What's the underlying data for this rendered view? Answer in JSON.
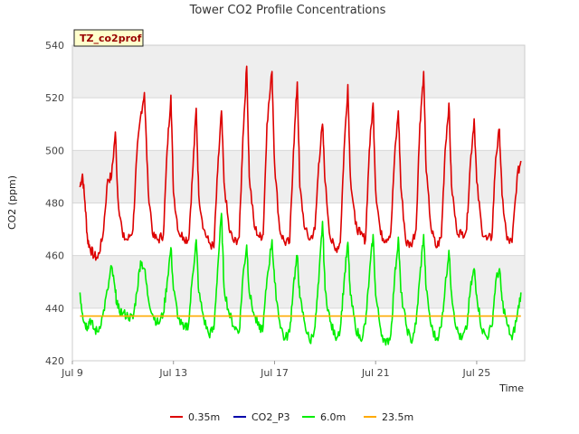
{
  "chart_data": {
    "type": "line",
    "title": "Tower CO2 Profile Concentrations",
    "badge": "TZ_co2prof",
    "xlabel": "Time",
    "ylabel": "CO2 (ppm)",
    "xlim": [
      9.0,
      26.9
    ],
    "ylim": [
      420,
      540
    ],
    "y_ticks": [
      420,
      440,
      460,
      480,
      500,
      520,
      540
    ],
    "x_ticks": [
      {
        "value": 9,
        "label": "Jul 9"
      },
      {
        "value": 13,
        "label": "Jul 13"
      },
      {
        "value": 17,
        "label": "Jul 17"
      },
      {
        "value": 21,
        "label": "Jul 21"
      },
      {
        "value": 25,
        "label": "Jul 25"
      }
    ],
    "colors": {
      "band": "#eeeeee",
      "grid": "#d8d8d8",
      "badge_bg": "#ffffcc"
    },
    "legend": [
      {
        "name": "0.35m",
        "color": "#dd0000"
      },
      {
        "name": "CO2_P3",
        "color": "#0000aa"
      },
      {
        "name": "6.0m",
        "color": "#00ee00"
      },
      {
        "name": "23.5m",
        "color": "#ffaa00"
      }
    ],
    "series": [
      {
        "name": "0.35m",
        "color": "#dd0000",
        "x": [
          9.3,
          9.4,
          9.5,
          9.6,
          9.7,
          9.85,
          10.0,
          10.2,
          10.4,
          10.55,
          10.7,
          10.8,
          11.0,
          11.2,
          11.4,
          11.55,
          11.7,
          11.85,
          12.0,
          12.2,
          12.4,
          12.6,
          12.75,
          12.9,
          13.0,
          13.2,
          13.4,
          13.6,
          13.75,
          13.9,
          14.0,
          14.2,
          14.4,
          14.6,
          14.75,
          14.9,
          15.0,
          15.2,
          15.4,
          15.6,
          15.75,
          15.9,
          16.0,
          16.2,
          16.4,
          16.55,
          16.7,
          16.9,
          17.0,
          17.2,
          17.4,
          17.6,
          17.75,
          17.9,
          18.0,
          18.2,
          18.4,
          18.6,
          18.75,
          18.9,
          19.0,
          19.2,
          19.4,
          19.6,
          19.75,
          19.9,
          20.0,
          20.2,
          20.4,
          20.6,
          20.75,
          20.9,
          21.0,
          21.2,
          21.4,
          21.6,
          21.75,
          21.9,
          22.0,
          22.2,
          22.4,
          22.6,
          22.75,
          22.9,
          23.0,
          23.2,
          23.4,
          23.6,
          23.75,
          23.9,
          24.0,
          24.2,
          24.4,
          24.6,
          24.75,
          24.9,
          25.0,
          25.2,
          25.4,
          25.6,
          25.75,
          25.9,
          26.0,
          26.2,
          26.4,
          26.6,
          26.75
        ],
        "y": [
          486,
          491,
          480,
          466,
          463,
          460,
          459,
          467,
          489,
          490,
          507,
          482,
          467,
          466,
          470,
          498,
          513,
          522,
          485,
          467,
          466,
          468,
          500,
          521,
          484,
          469,
          467,
          466,
          490,
          516,
          483,
          470,
          465,
          463,
          492,
          515,
          488,
          470,
          465,
          467,
          505,
          532,
          490,
          471,
          467,
          468,
          510,
          530,
          495,
          470,
          465,
          465,
          500,
          526,
          486,
          470,
          466,
          470,
          495,
          510,
          488,
          467,
          462,
          465,
          500,
          525,
          490,
          472,
          468,
          466,
          500,
          518,
          485,
          468,
          466,
          469,
          497,
          515,
          486,
          465,
          464,
          470,
          510,
          530,
          492,
          470,
          463,
          467,
          500,
          518,
          487,
          470,
          468,
          470,
          495,
          512,
          488,
          470,
          466,
          467,
          497,
          508,
          483,
          466,
          465,
          490,
          496
        ]
      },
      {
        "name": "6.0m",
        "color": "#00ee00",
        "x": [
          9.3,
          9.4,
          9.5,
          9.6,
          9.7,
          9.85,
          10.0,
          10.2,
          10.4,
          10.55,
          10.7,
          10.8,
          11.0,
          11.2,
          11.4,
          11.55,
          11.7,
          11.85,
          12.0,
          12.2,
          12.4,
          12.6,
          12.75,
          12.9,
          13.0,
          13.2,
          13.4,
          13.6,
          13.75,
          13.9,
          14.0,
          14.2,
          14.4,
          14.6,
          14.75,
          14.9,
          15.0,
          15.2,
          15.4,
          15.6,
          15.75,
          15.9,
          16.0,
          16.2,
          16.4,
          16.55,
          16.7,
          16.9,
          17.0,
          17.2,
          17.4,
          17.6,
          17.75,
          17.9,
          18.0,
          18.2,
          18.4,
          18.6,
          18.75,
          18.9,
          19.0,
          19.2,
          19.4,
          19.6,
          19.75,
          19.9,
          20.0,
          20.2,
          20.4,
          20.6,
          20.75,
          20.9,
          21.0,
          21.2,
          21.4,
          21.6,
          21.75,
          21.9,
          22.0,
          22.2,
          22.4,
          22.6,
          22.75,
          22.9,
          23.0,
          23.2,
          23.4,
          23.6,
          23.75,
          23.9,
          24.0,
          24.2,
          24.4,
          24.6,
          24.75,
          24.9,
          25.0,
          25.2,
          25.4,
          25.6,
          25.75,
          25.9,
          26.0,
          26.2,
          26.4,
          26.6,
          26.75
        ],
        "y": [
          446,
          438,
          434,
          433,
          436,
          432,
          431,
          437,
          447,
          456,
          446,
          440,
          438,
          437,
          436,
          446,
          458,
          455,
          444,
          437,
          434,
          438,
          450,
          463,
          447,
          436,
          432,
          434,
          452,
          466,
          446,
          436,
          430,
          432,
          455,
          476,
          448,
          438,
          433,
          431,
          452,
          464,
          446,
          437,
          432,
          433,
          451,
          466,
          450,
          435,
          428,
          431,
          449,
          460,
          444,
          434,
          427,
          433,
          450,
          473,
          447,
          435,
          429,
          432,
          450,
          465,
          445,
          433,
          428,
          434,
          452,
          468,
          445,
          432,
          426,
          430,
          451,
          467,
          446,
          434,
          427,
          434,
          452,
          468,
          447,
          433,
          428,
          433,
          448,
          462,
          446,
          432,
          428,
          432,
          447,
          455,
          445,
          432,
          429,
          433,
          450,
          455,
          443,
          434,
          428,
          437,
          446
        ]
      },
      {
        "name": "23.5m",
        "color": "#ffaa00",
        "x": [
          9.3,
          26.75
        ],
        "y": [
          437,
          437
        ]
      }
    ]
  }
}
